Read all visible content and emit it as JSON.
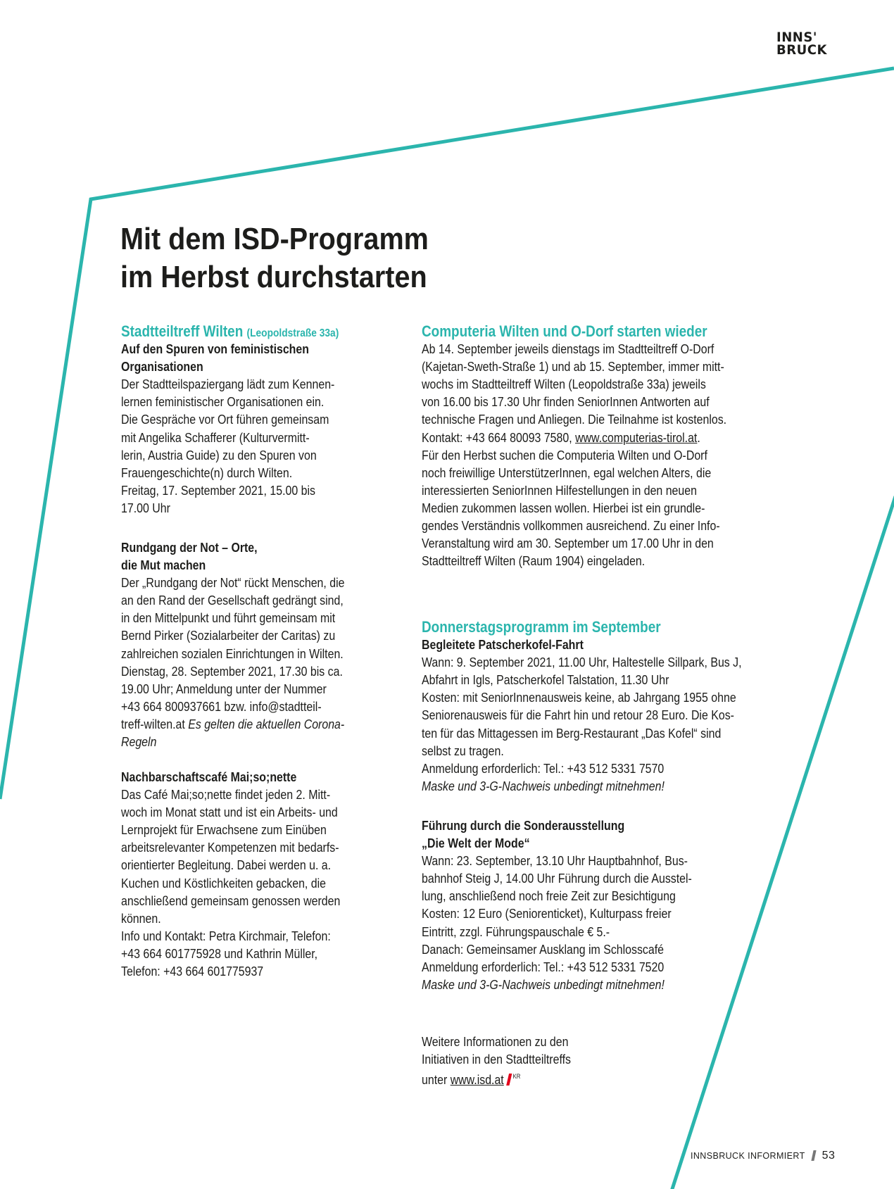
{
  "brand": {
    "logo_line1": "INNS'",
    "logo_line2": "BRUCK",
    "accent_color": "#2bb5ad"
  },
  "title": {
    "line1": "Mit dem ISD-Programm",
    "line2": "im Herbst durchstarten"
  },
  "sections": [
    {
      "lines": [
        [
          {
            "text": "Stadtteiltreff Wilten ",
            "style": "head"
          },
          {
            "text": "(Leopoldstraße 33a)",
            "style": "headsmall"
          }
        ],
        [
          {
            "text": "Auf den Spuren von feministischen",
            "style": "bold"
          }
        ],
        [
          {
            "text": "Organisationen",
            "style": "bold"
          }
        ],
        "Der Stadtteilspaziergang lädt zum Kennen-",
        "lernen feministischer Organisationen ein.",
        "Die Gespräche vor Ort führen gemeinsam",
        "mit Angelika Schafferer (Kulturvermitt-",
        "lerin, Austria Guide) zu den Spuren von",
        "Frauengeschichte(n) durch Wilten.",
        "Freitag, 17. September 2021, 15.00 bis",
        "17.00 Uhr"
      ]
    },
    {
      "lines": [
        [
          {
            "text": "Rundgang der Not – Orte,",
            "style": "bold"
          }
        ],
        [
          {
            "text": "die Mut machen",
            "style": "bold"
          }
        ],
        "Der „Rundgang der Not“ rückt Menschen, die",
        "an den Rand der Gesellschaft gedrängt sind,",
        "in den Mittelpunkt und führt gemeinsam mit",
        "Bernd Pirker (Sozialarbeiter der Caritas) zu",
        "zahlreichen sozialen Einrichtungen in Wilten.",
        "Dienstag, 28. September 2021, 17.30 bis ca.",
        "19.00 Uhr; Anmeldung unter der Nummer",
        "+43 664 800937661 bzw. info@stadtteil-",
        [
          {
            "text": "treff-wilten.at ",
            "style": "normal"
          },
          {
            "text": "Es gelten die aktuellen Corona-",
            "style": "italic"
          }
        ],
        [
          {
            "text": "Regeln",
            "style": "italic"
          }
        ]
      ]
    },
    {
      "lines": [
        [
          {
            "text": "Nachbarschaftscafé Mai;so;nette",
            "style": "bold"
          }
        ],
        "Das Café Mai;so;nette findet jeden 2. Mitt-",
        "woch im Monat statt und ist ein Arbeits- und",
        "Lernprojekt für Erwachsene zum Einüben",
        "arbeitsrelevanter Kompetenzen mit bedarfs-",
        "orientierter Begleitung. Dabei werden u. a.",
        "Kuchen und Köstlichkeiten gebacken, die",
        "anschließend gemeinsam genossen werden",
        "können.",
        "Info und Kontakt: Petra Kirchmair, Telefon:",
        "+43 664 601775928 und Kathrin Müller,",
        "Telefon: +43 664 601775937"
      ]
    },
    {
      "lines": [
        [
          {
            "text": "Computeria Wilten und O-Dorf starten wieder",
            "style": "head"
          }
        ],
        "Ab 14. September jeweils dienstags im Stadtteiltreff O-Dorf",
        "(Kajetan-Sweth-Straße 1) und ab 15. September, immer mitt-",
        "wochs im Stadtteiltreff Wilten (Leopoldstraße 33a) jeweils",
        "von 16.00 bis 17.30 Uhr finden SeniorInnen Antworten auf",
        "technische Fragen und Anliegen. Die Teilnahme ist kostenlos.",
        [
          {
            "text": "Kontakt: +43 664 80093 7580, ",
            "style": "normal"
          },
          {
            "text": "www.computerias-tirol.at",
            "style": "link"
          },
          {
            "text": ".",
            "style": "normal"
          }
        ],
        "Für den Herbst suchen die Computeria Wilten und O-Dorf",
        "noch freiwillige UnterstützerInnen, egal welchen Alters, die",
        "interessierten SeniorInnen Hilfestellungen in den neuen",
        "Medien zukommen lassen wollen. Hierbei ist ein grundle-",
        "gendes Verständnis vollkommen ausreichend. Zu einer Info-",
        "Veranstaltung wird am 30. September um 17.00 Uhr in den",
        "Stadtteiltreff Wilten (Raum 1904) eingeladen."
      ]
    },
    {
      "lines": [
        [
          {
            "text": "Donnerstagsprogramm im September",
            "style": "head"
          }
        ],
        [
          {
            "text": "Begleitete Patscherkofel-Fahrt",
            "style": "bold"
          }
        ],
        "Wann: 9. September 2021, 11.00 Uhr, Haltestelle Sillpark, Bus J,",
        "Abfahrt in Igls, Patscherkofel Talstation, 11.30 Uhr",
        "Kosten: mit SeniorInnenausweis keine, ab Jahrgang 1955 ohne",
        "Seniorenausweis für die Fahrt hin und retour 28 Euro. Die Kos-",
        "ten für das Mittagessen im Berg-Restaurant „Das Kofel“ sind",
        "selbst zu tragen.",
        "Anmeldung erforderlich: Tel.: +43 512 5331 7570",
        [
          {
            "text": "Maske und 3-G-Nachweis unbedingt mitnehmen!",
            "style": "italic"
          }
        ]
      ]
    },
    {
      "lines": [
        [
          {
            "text": "Führung durch die Sonderausstellung",
            "style": "bold"
          }
        ],
        [
          {
            "text": "„Die Welt der Mode“",
            "style": "bold"
          }
        ],
        "Wann: 23. September, 13.10 Uhr Hauptbahnhof, Bus-",
        "bahnhof Steig J, 14.00 Uhr Führung durch die Ausstel-",
        "lung, anschließend noch freie Zeit zur Besichtigung",
        "Kosten: 12 Euro (Seniorenticket), Kulturpass freier",
        "Eintritt, zzgl. Führungspauschale € 5.-",
        "Danach: Gemeinsamer Ausklang im Schlosscafé",
        "Anmeldung erforderlich: Tel.: +43 512 5331 7520",
        [
          {
            "text": "Maske und 3-G-Nachweis unbedingt mitnehmen!",
            "style": "italic"
          }
        ]
      ]
    },
    {
      "lines": [
        "Weitere Informationen zu den",
        "Initiativen in den Stadtteiltreffs",
        [
          {
            "text": "unter ",
            "style": "normal"
          },
          {
            "text": "www.isd.at",
            "style": "link"
          }
        ]
      ]
    }
  ],
  "author_initials": "KR",
  "footer": {
    "publication": "INNSBRUCK INFORMIERT",
    "page_number": "53"
  }
}
